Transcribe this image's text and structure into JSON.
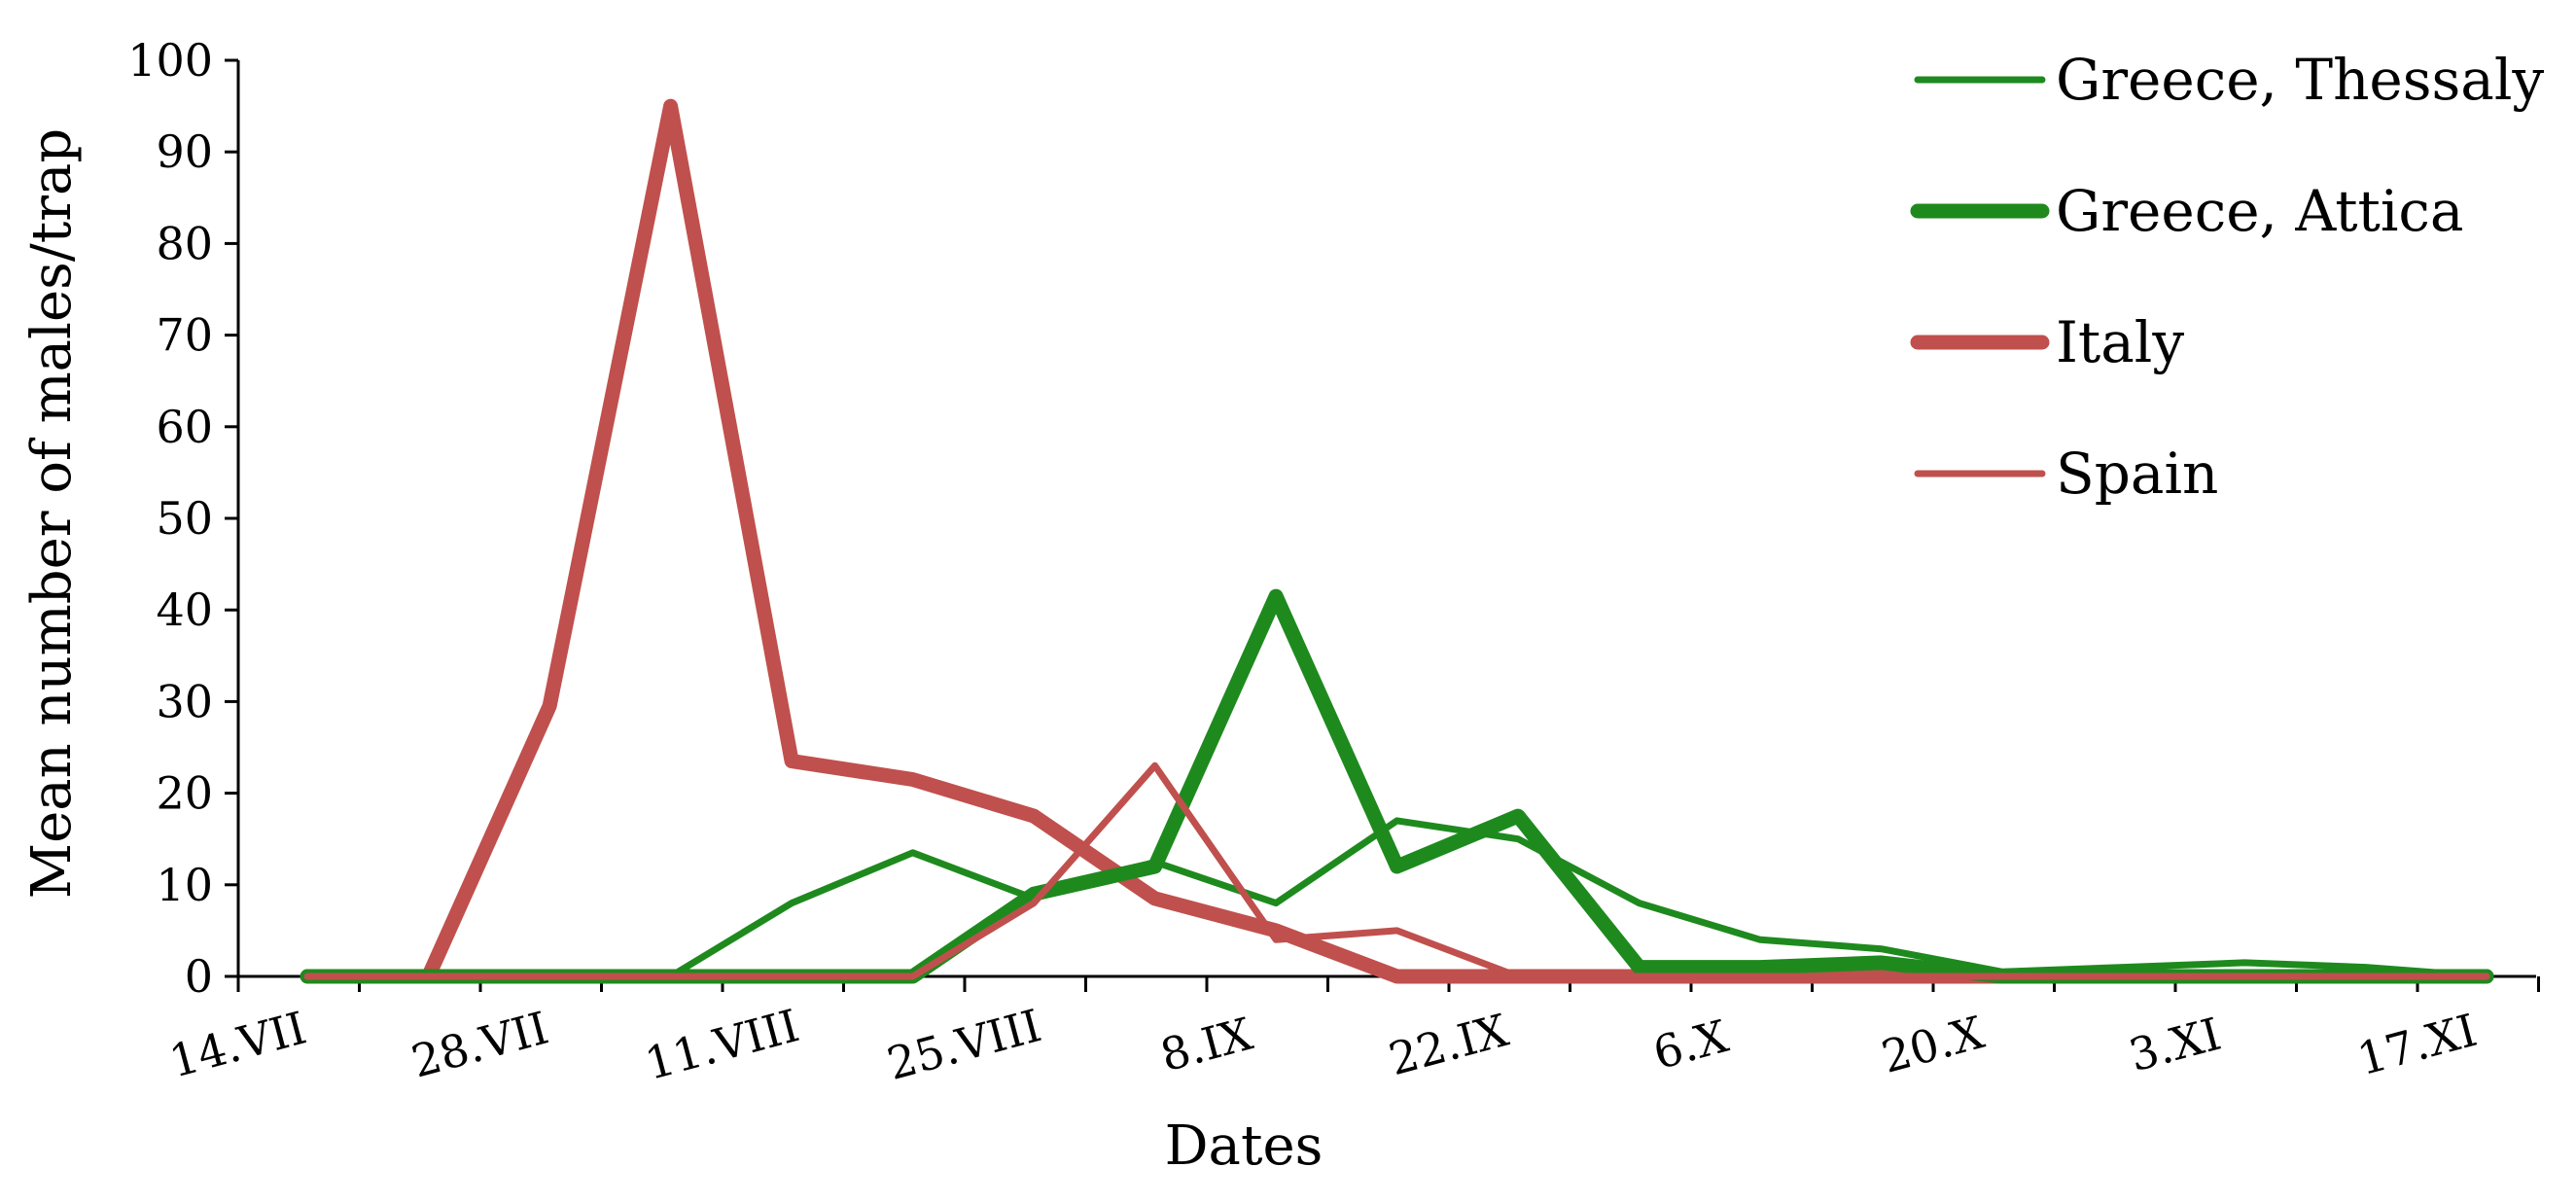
{
  "chart_data": {
    "type": "line",
    "title": "",
    "xlabel": "Dates",
    "ylabel": "Mean number of males/trap",
    "ylim": [
      0,
      100
    ],
    "yticks": [
      0,
      10,
      20,
      30,
      40,
      50,
      60,
      70,
      80,
      90,
      100
    ],
    "x_dates": [
      "14.VII",
      "21.VII",
      "28.VII",
      "4.VIII",
      "11.VIII",
      "18.VIII",
      "25.VIII",
      "1.IX",
      "8.IX",
      "15.IX",
      "22.IX",
      "29.IX",
      "6.X",
      "13.X",
      "20.X",
      "27.X",
      "3.XI",
      "10.XI",
      "17.XI",
      "24.XI"
    ],
    "xtick_labels": [
      "14.VII",
      "28.VII",
      "11.VIII",
      "25.VIII",
      "8.IX",
      "22.IX",
      "6.X",
      "20.X",
      "3.XI",
      "17.XI"
    ],
    "grid": false,
    "legend_position": "top-right",
    "series": [
      {
        "name": "Greece, Thessaly",
        "color": "#1e8a1e",
        "weight": "thin",
        "points": [
          {
            "x": "18.VII",
            "y": 0
          },
          {
            "x": "25.VII",
            "y": 0
          },
          {
            "x": "1.VIII",
            "y": 0
          },
          {
            "x": "8.VIII",
            "y": 0
          },
          {
            "x": "15.VIII",
            "y": 8
          },
          {
            "x": "22.VIII",
            "y": 13.5
          },
          {
            "x": "29.VIII",
            "y": 8.5
          },
          {
            "x": "5.IX",
            "y": 12.5
          },
          {
            "x": "12.IX",
            "y": 8
          },
          {
            "x": "19.IX",
            "y": 17
          },
          {
            "x": "26.IX",
            "y": 15
          },
          {
            "x": "3.X",
            "y": 8
          },
          {
            "x": "10.X",
            "y": 4
          },
          {
            "x": "17.X",
            "y": 3
          },
          {
            "x": "24.X",
            "y": 0.5
          },
          {
            "x": "31.X",
            "y": 1
          },
          {
            "x": "7.XI",
            "y": 1.5
          },
          {
            "x": "14.XI",
            "y": 1
          },
          {
            "x": "21.XI",
            "y": 0
          }
        ]
      },
      {
        "name": "Greece, Attica",
        "color": "#1e8a1e",
        "weight": "thick",
        "points": [
          {
            "x": "18.VII",
            "y": 0
          },
          {
            "x": "25.VII",
            "y": 0
          },
          {
            "x": "1.VIII",
            "y": 0
          },
          {
            "x": "8.VIII",
            "y": 0
          },
          {
            "x": "15.VIII",
            "y": 0
          },
          {
            "x": "22.VIII",
            "y": 0
          },
          {
            "x": "29.VIII",
            "y": 9
          },
          {
            "x": "5.IX",
            "y": 12
          },
          {
            "x": "12.IX",
            "y": 41.5
          },
          {
            "x": "19.IX",
            "y": 12
          },
          {
            "x": "26.IX",
            "y": 17.5
          },
          {
            "x": "3.X",
            "y": 1
          },
          {
            "x": "10.X",
            "y": 1
          },
          {
            "x": "17.X",
            "y": 1.5
          },
          {
            "x": "24.X",
            "y": 0
          },
          {
            "x": "31.X",
            "y": 0
          },
          {
            "x": "7.XI",
            "y": 0
          },
          {
            "x": "14.XI",
            "y": 0
          },
          {
            "x": "21.XI",
            "y": 0
          }
        ]
      },
      {
        "name": "Italy",
        "color": "#c0504d",
        "weight": "thick",
        "points": [
          {
            "x": "18.VII",
            "y": 0
          },
          {
            "x": "25.VII",
            "y": 0
          },
          {
            "x": "1.VIII",
            "y": 29.5
          },
          {
            "x": "8.VIII",
            "y": 95
          },
          {
            "x": "15.VIII",
            "y": 23.5
          },
          {
            "x": "22.VIII",
            "y": 21.5
          },
          {
            "x": "29.VIII",
            "y": 17.5
          },
          {
            "x": "5.IX",
            "y": 8.5
          },
          {
            "x": "12.IX",
            "y": 5
          },
          {
            "x": "19.IX",
            "y": 0
          },
          {
            "x": "26.IX",
            "y": 0
          },
          {
            "x": "3.X",
            "y": 0
          },
          {
            "x": "10.X",
            "y": 0
          },
          {
            "x": "17.X",
            "y": 0
          },
          {
            "x": "24.X",
            "y": 0
          },
          {
            "x": "31.X",
            "y": 0
          },
          {
            "x": "7.XI",
            "y": 0
          },
          {
            "x": "14.XI",
            "y": 0
          },
          {
            "x": "21.XI",
            "y": 0
          }
        ]
      },
      {
        "name": "Spain",
        "color": "#c0504d",
        "weight": "thin",
        "points": [
          {
            "x": "18.VII",
            "y": 0
          },
          {
            "x": "25.VII",
            "y": 0
          },
          {
            "x": "1.VIII",
            "y": 0
          },
          {
            "x": "8.VIII",
            "y": 0
          },
          {
            "x": "15.VIII",
            "y": 0
          },
          {
            "x": "22.VIII",
            "y": 0
          },
          {
            "x": "29.VIII",
            "y": 8
          },
          {
            "x": "5.IX",
            "y": 23
          },
          {
            "x": "12.IX",
            "y": 4
          },
          {
            "x": "19.IX",
            "y": 5
          },
          {
            "x": "26.IX",
            "y": 0
          },
          {
            "x": "3.X",
            "y": 0
          },
          {
            "x": "10.X",
            "y": 0
          },
          {
            "x": "17.X",
            "y": 0
          },
          {
            "x": "24.X",
            "y": 0
          },
          {
            "x": "31.X",
            "y": 0
          },
          {
            "x": "7.XI",
            "y": 0
          },
          {
            "x": "14.XI",
            "y": 0
          },
          {
            "x": "21.XI",
            "y": 0
          }
        ]
      }
    ]
  }
}
